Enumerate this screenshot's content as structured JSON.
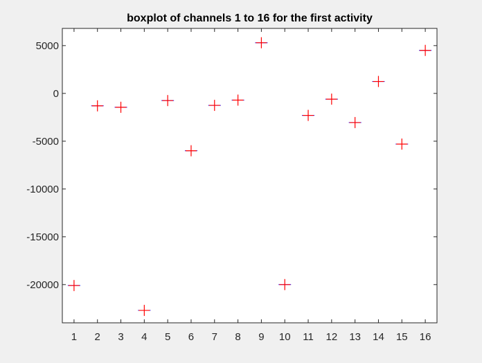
{
  "chart_data": {
    "type": "boxplot",
    "title": "boxplot of channels 1 to 16 for the first activity",
    "xlabel": "",
    "ylabel": "",
    "categories": [
      "1",
      "2",
      "3",
      "4",
      "5",
      "6",
      "7",
      "8",
      "9",
      "10",
      "11",
      "12",
      "13",
      "14",
      "15",
      "16"
    ],
    "values": [
      -20100,
      -1300,
      -1450,
      -22700,
      -750,
      -6000,
      -1250,
      -700,
      5300,
      -20000,
      -2300,
      -600,
      -3050,
      1250,
      -5300,
      4500
    ],
    "xlim": [
      0.5,
      16.5
    ],
    "ylim": [
      -24000,
      6800
    ],
    "yticks": [
      5000,
      0,
      -5000,
      -10000,
      -15000,
      -20000
    ],
    "ytick_labels": [
      "5000",
      "0",
      "-5000",
      "-10000",
      "-15000",
      "-20000"
    ],
    "grid": false,
    "colors": {
      "outlier": "#ff0000",
      "median": "#ff0000",
      "box": "#0000ff",
      "axis": "#262626",
      "background": "#f0f0f0",
      "plot_background": "#ffffff"
    }
  }
}
